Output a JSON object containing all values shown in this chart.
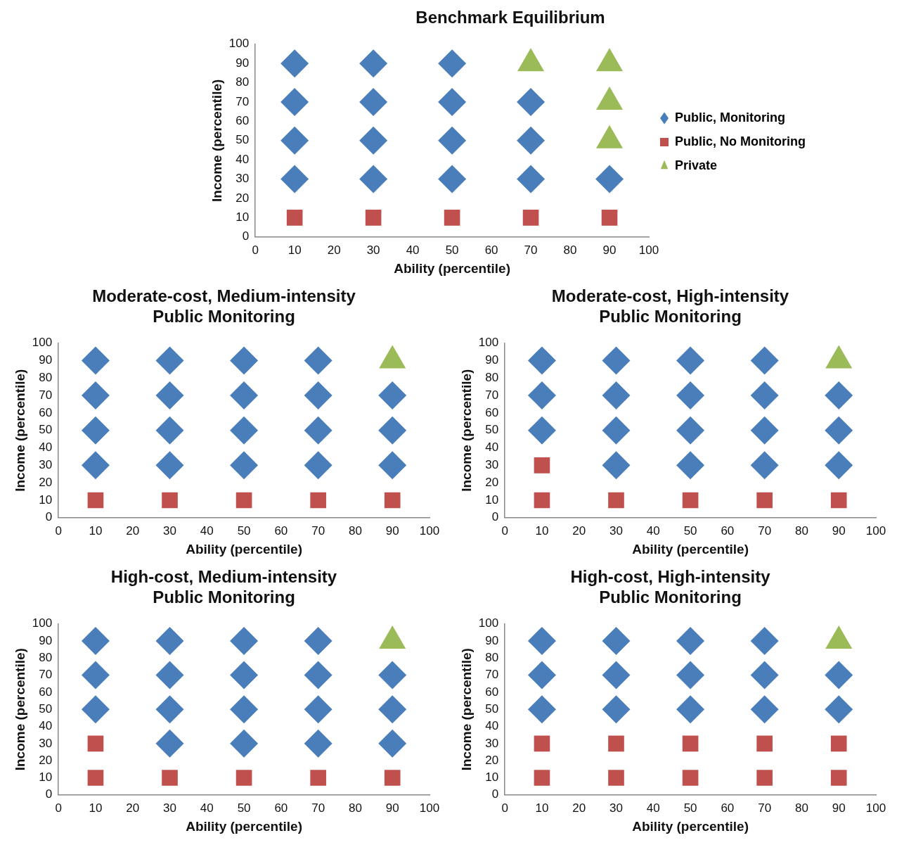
{
  "chart_data": [
    {
      "type": "scatter",
      "title": "Benchmark Equilibrium",
      "xlabel": "Ability (percentile)",
      "ylabel": "Income (percentile)",
      "xlim": [
        0,
        100
      ],
      "ylim": [
        0,
        100
      ],
      "xticks": [
        0,
        10,
        20,
        30,
        40,
        50,
        60,
        70,
        80,
        90,
        100
      ],
      "yticks": [
        0,
        10,
        20,
        30,
        40,
        50,
        60,
        70,
        80,
        90,
        100
      ],
      "grid": false,
      "legend": "right",
      "series": [
        {
          "name": "Public, Monitoring",
          "color": "#4a7ebb",
          "marker": "diamond",
          "x": [
            10,
            10,
            10,
            10,
            30,
            30,
            30,
            30,
            50,
            50,
            50,
            50,
            70,
            70,
            70,
            90
          ],
          "values": [
            30,
            50,
            70,
            90,
            30,
            50,
            70,
            90,
            30,
            50,
            70,
            90,
            30,
            50,
            70,
            30
          ]
        },
        {
          "name": "Public, No Monitoring",
          "color": "#c0504d",
          "marker": "square",
          "x": [
            10,
            30,
            50,
            70,
            90
          ],
          "values": [
            10,
            10,
            10,
            10,
            10
          ]
        },
        {
          "name": "Private",
          "color": "#9bbb59",
          "marker": "triangle",
          "x": [
            70,
            90,
            90,
            90
          ],
          "values": [
            90,
            50,
            70,
            90
          ]
        }
      ]
    },
    {
      "type": "scatter",
      "title": "Moderate-cost, Medium-intensity\nPublic Monitoring",
      "xlabel": "Ability (percentile)",
      "ylabel": "Income (percentile)",
      "xlim": [
        0,
        100
      ],
      "ylim": [
        0,
        100
      ],
      "xticks": [
        0,
        10,
        20,
        30,
        40,
        50,
        60,
        70,
        80,
        90,
        100
      ],
      "yticks": [
        0,
        10,
        20,
        30,
        40,
        50,
        60,
        70,
        80,
        90,
        100
      ],
      "grid": false,
      "legend": false,
      "series": [
        {
          "color": "#4a7ebb",
          "marker": "diamond",
          "x": [
            10,
            10,
            10,
            10,
            30,
            30,
            30,
            30,
            50,
            50,
            50,
            50,
            70,
            70,
            70,
            70,
            90,
            90,
            90
          ],
          "values": [
            30,
            50,
            70,
            90,
            30,
            50,
            70,
            90,
            30,
            50,
            70,
            90,
            30,
            50,
            70,
            90,
            30,
            50,
            70
          ]
        },
        {
          "color": "#c0504d",
          "marker": "square",
          "x": [
            10,
            30,
            50,
            70,
            90
          ],
          "values": [
            10,
            10,
            10,
            10,
            10
          ]
        },
        {
          "color": "#9bbb59",
          "marker": "triangle",
          "x": [
            90
          ],
          "values": [
            90
          ]
        }
      ]
    },
    {
      "type": "scatter",
      "title": "Moderate-cost, High-intensity\nPublic Monitoring",
      "xlabel": "Ability (percentile)",
      "ylabel": "Income (percentile)",
      "xlim": [
        0,
        100
      ],
      "ylim": [
        0,
        100
      ],
      "xticks": [
        0,
        10,
        20,
        30,
        40,
        50,
        60,
        70,
        80,
        90,
        100
      ],
      "yticks": [
        0,
        10,
        20,
        30,
        40,
        50,
        60,
        70,
        80,
        90,
        100
      ],
      "grid": false,
      "legend": false,
      "series": [
        {
          "color": "#4a7ebb",
          "marker": "diamond",
          "x": [
            10,
            10,
            10,
            30,
            30,
            30,
            30,
            50,
            50,
            50,
            50,
            70,
            70,
            70,
            70,
            90,
            90,
            90
          ],
          "values": [
            50,
            70,
            90,
            30,
            50,
            70,
            90,
            30,
            50,
            70,
            90,
            30,
            50,
            70,
            90,
            30,
            50,
            70
          ]
        },
        {
          "color": "#c0504d",
          "marker": "square",
          "x": [
            10,
            10,
            30,
            50,
            70,
            90
          ],
          "values": [
            10,
            30,
            10,
            10,
            10,
            10
          ]
        },
        {
          "color": "#9bbb59",
          "marker": "triangle",
          "x": [
            90
          ],
          "values": [
            90
          ]
        }
      ]
    },
    {
      "type": "scatter",
      "title": "High-cost, Medium-intensity\nPublic Monitoring",
      "xlabel": "Ability (percentile)",
      "ylabel": "Income (percentile)",
      "xlim": [
        0,
        100
      ],
      "ylim": [
        0,
        100
      ],
      "xticks": [
        0,
        10,
        20,
        30,
        40,
        50,
        60,
        70,
        80,
        90,
        100
      ],
      "yticks": [
        0,
        10,
        20,
        30,
        40,
        50,
        60,
        70,
        80,
        90,
        100
      ],
      "grid": false,
      "legend": false,
      "series": [
        {
          "color": "#4a7ebb",
          "marker": "diamond",
          "x": [
            10,
            10,
            10,
            30,
            30,
            30,
            30,
            50,
            50,
            50,
            50,
            70,
            70,
            70,
            70,
            90,
            90,
            90
          ],
          "values": [
            50,
            70,
            90,
            30,
            50,
            70,
            90,
            30,
            50,
            70,
            90,
            30,
            50,
            70,
            90,
            30,
            50,
            70
          ]
        },
        {
          "color": "#c0504d",
          "marker": "square",
          "x": [
            10,
            10,
            30,
            50,
            70,
            90
          ],
          "values": [
            10,
            30,
            10,
            10,
            10,
            10
          ]
        },
        {
          "color": "#9bbb59",
          "marker": "triangle",
          "x": [
            90
          ],
          "values": [
            90
          ]
        }
      ]
    },
    {
      "type": "scatter",
      "title": "High-cost, High-intensity\nPublic Monitoring",
      "xlabel": "Ability (percentile)",
      "ylabel": "Income (percentile)",
      "xlim": [
        0,
        100
      ],
      "ylim": [
        0,
        100
      ],
      "xticks": [
        0,
        10,
        20,
        30,
        40,
        50,
        60,
        70,
        80,
        90,
        100
      ],
      "yticks": [
        0,
        10,
        20,
        30,
        40,
        50,
        60,
        70,
        80,
        90,
        100
      ],
      "grid": false,
      "legend": false,
      "series": [
        {
          "color": "#4a7ebb",
          "marker": "diamond",
          "x": [
            10,
            10,
            10,
            30,
            30,
            30,
            50,
            50,
            50,
            70,
            70,
            70,
            90,
            90
          ],
          "values": [
            50,
            70,
            90,
            50,
            70,
            90,
            50,
            70,
            90,
            50,
            70,
            90,
            50,
            70
          ]
        },
        {
          "color": "#c0504d",
          "marker": "square",
          "x": [
            10,
            10,
            30,
            30,
            50,
            50,
            70,
            70,
            90,
            90
          ],
          "values": [
            10,
            30,
            10,
            30,
            10,
            30,
            10,
            30,
            10,
            30
          ]
        },
        {
          "color": "#9bbb59",
          "marker": "triangle",
          "x": [
            90
          ],
          "values": [
            90
          ]
        }
      ]
    }
  ]
}
